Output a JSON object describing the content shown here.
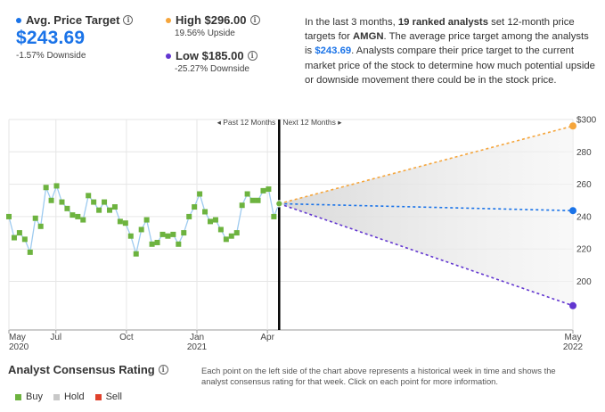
{
  "summary": {
    "avg": {
      "label": "Avg. Price Target",
      "value": "$243.69",
      "change": "-1.57% Downside",
      "color": "#1a73e8"
    },
    "high": {
      "label": "High $296.00",
      "change": "19.56% Upside",
      "color": "#f5a53b"
    },
    "low": {
      "label": "Low $185.00",
      "change": "-25.27% Downside",
      "color": "#6236d0"
    }
  },
  "description": {
    "p1": "In the last 3 months, ",
    "analysts": "19 ranked analysts",
    "p2": " set 12-month price targets for ",
    "ticker": "AMGN",
    "p3": ". The average price target among the analysts is ",
    "avg": "$243.69",
    "p4": ". Analysts compare their price target to the current market price of the stock to determine how much potential upside or downside movement there could be in the stock price."
  },
  "chart_data": {
    "type": "line",
    "past_label": "Past 12 Months",
    "next_label": "Next 12 Months",
    "ylim": [
      170,
      300
    ],
    "yticks": [
      200,
      220,
      240,
      260,
      280,
      "$300"
    ],
    "xticks": [
      {
        "label": "May",
        "year": "2020",
        "t": 0.0
      },
      {
        "label": "Jul",
        "year": "",
        "t": 2.0
      },
      {
        "label": "Oct",
        "year": "",
        "t": 5.0
      },
      {
        "label": "Jan",
        "year": "2021",
        "t": 8.0
      },
      {
        "label": "Apr",
        "year": "",
        "t": 11.0
      },
      {
        "label": "May",
        "year": "2022",
        "t": 24.0
      }
    ],
    "now_t": 11.5,
    "end_t": 24.0,
    "current_price": 248,
    "history": [
      240,
      227,
      230,
      226,
      218,
      239,
      234,
      258,
      250,
      259,
      249,
      245,
      241,
      240,
      238,
      253,
      249,
      244,
      249,
      244,
      246,
      237,
      236,
      228,
      217,
      232,
      238,
      223,
      224,
      229,
      228,
      229,
      223,
      230,
      240,
      246,
      254,
      243,
      237,
      238,
      232,
      226,
      228,
      230,
      247,
      254,
      250,
      250,
      256,
      257,
      240,
      248
    ],
    "history_ratings": [
      "buy"
    ],
    "projections": [
      {
        "name": "High",
        "value": 296,
        "color": "#f5a53b"
      },
      {
        "name": "Avg",
        "value": 243.69,
        "color": "#1a73e8"
      },
      {
        "name": "Low",
        "value": 185,
        "color": "#6236d0"
      }
    ],
    "line_color": "#9ecbf0",
    "buy_color": "#6db33f"
  },
  "rating": {
    "title": "Analyst Consensus Rating",
    "note": "Each point on the left side of the chart above represents a historical week in time and shows the analyst consensus rating for that week. Click on each point for more information.",
    "legend": [
      {
        "label": "Buy",
        "color": "#6db33f"
      },
      {
        "label": "Hold",
        "color": "#c8c8c8"
      },
      {
        "label": "Sell",
        "color": "#e0412c"
      }
    ]
  }
}
